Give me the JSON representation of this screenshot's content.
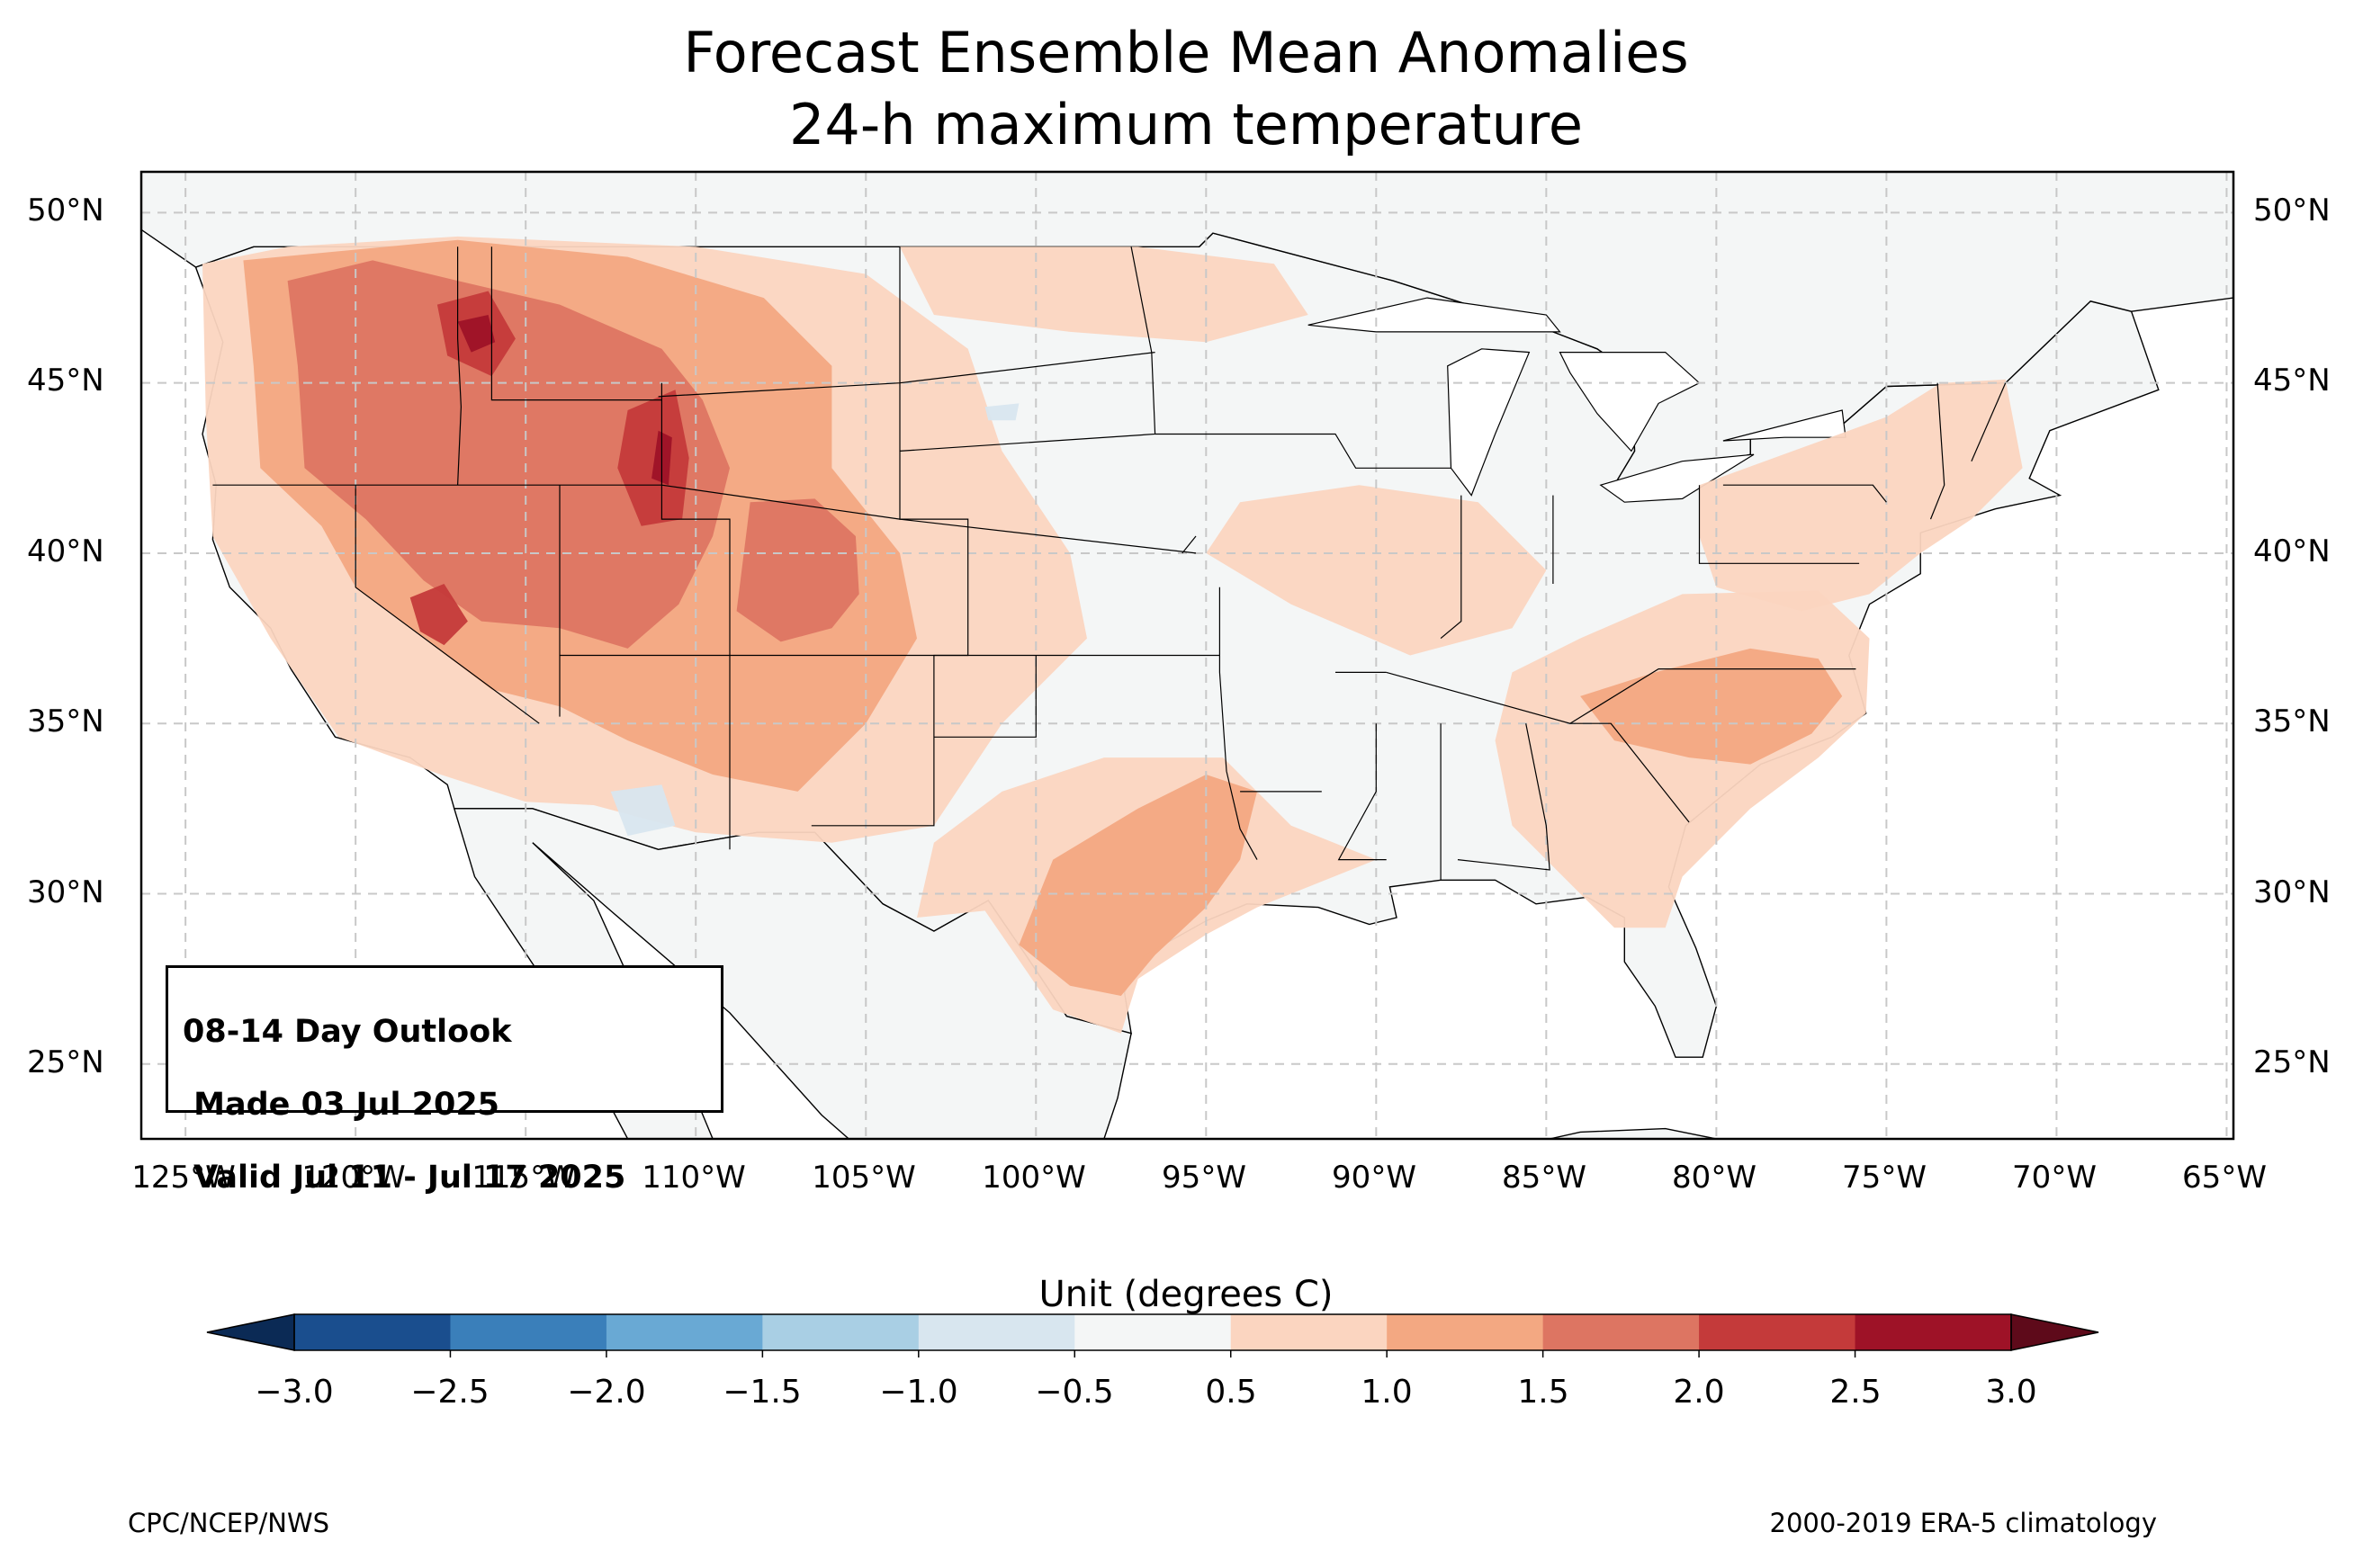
{
  "title": {
    "line1": "Forecast Ensemble Mean Anomalies",
    "line2": "24-h maximum temperature"
  },
  "info_box": {
    "line1": "08-14 Day Outlook",
    "line2": " Made 03 Jul 2025",
    "line3": " Valid Jul 11 - Jul 17 2025"
  },
  "latitude_labels": [
    "50°N",
    "45°N",
    "40°N",
    "35°N",
    "30°N",
    "25°N"
  ],
  "longitude_labels": [
    "125°W",
    "120°W",
    "115°W",
    "110°W",
    "105°W",
    "100°W",
    "95°W",
    "90°W",
    "85°W",
    "80°W",
    "75°W",
    "70°W",
    "65°W"
  ],
  "colorbar": {
    "label": "Unit (degrees C)",
    "ticks": [
      "−3.0",
      "−2.5",
      "−2.0",
      "−1.5",
      "−1.0",
      "−0.5",
      "0.5",
      "1.0",
      "1.5",
      "2.0",
      "2.5",
      "3.0"
    ],
    "colors": [
      "#1a4e8e",
      "#3a7fba",
      "#69a9d4",
      "#a9cfe4",
      "#d8e6ef",
      "#f4f6f6",
      "#fbd5c0",
      "#f3a882",
      "#dd7562",
      "#c43a3a",
      "#9e1227"
    ],
    "under_color": "#0b2a55",
    "over_color": "#5e0a1a"
  },
  "footer": {
    "left": "CPC/NCEP/NWS",
    "right": "2000-2019 ERA-5 climatology"
  },
  "map": {
    "extent": {
      "lon_min": -126.3,
      "lon_max": -64.8,
      "lat_min": 22.8,
      "lat_max": 51.2
    },
    "land_color": "#f4f6f6",
    "anomaly_regions": [
      {
        "level": 1,
        "name": "West broad warmth",
        "poly": [
          [
            -124.5,
            48.5
          ],
          [
            -122,
            49
          ],
          [
            -117,
            49.3
          ],
          [
            -110,
            49
          ],
          [
            -105,
            48.2
          ],
          [
            -102,
            46
          ],
          [
            -101,
            43
          ],
          [
            -99,
            40
          ],
          [
            -98.5,
            37.5
          ],
          [
            -101,
            35
          ],
          [
            -103,
            32
          ],
          [
            -106,
            31.5
          ],
          [
            -110,
            31.8
          ],
          [
            -113,
            32.6
          ],
          [
            -115,
            32.7
          ],
          [
            -117.5,
            33.5
          ],
          [
            -120.5,
            34.6
          ],
          [
            -122.5,
            37.5
          ],
          [
            -124.2,
            40.5
          ],
          [
            -124.4,
            44
          ]
        ]
      },
      {
        "level": 1,
        "name": "Northern Plains",
        "poly": [
          [
            -104,
            49
          ],
          [
            -97,
            49
          ],
          [
            -93,
            48.5
          ],
          [
            -92,
            47
          ],
          [
            -95,
            46.2
          ],
          [
            -99,
            46.5
          ],
          [
            -103,
            47
          ]
        ]
      },
      {
        "level": 1,
        "name": "Upper Midwest",
        "poly": [
          [
            -94,
            41.5
          ],
          [
            -90.5,
            42
          ],
          [
            -87,
            41.5
          ],
          [
            -85,
            39.5
          ],
          [
            -86,
            37.8
          ],
          [
            -89,
            37
          ],
          [
            -92.5,
            38.5
          ],
          [
            -95,
            40
          ]
        ]
      },
      {
        "level": 1,
        "name": "Texas",
        "poly": [
          [
            -103,
            31.5
          ],
          [
            -101,
            33
          ],
          [
            -98,
            34
          ],
          [
            -94.5,
            34
          ],
          [
            -92.5,
            32
          ],
          [
            -90,
            31
          ],
          [
            -93.5,
            29.6
          ],
          [
            -95,
            28.8
          ],
          [
            -97,
            27.5
          ],
          [
            -97.5,
            25.9
          ],
          [
            -99.5,
            26.6
          ],
          [
            -101.5,
            29.5
          ],
          [
            -103.5,
            29.3
          ]
        ]
      },
      {
        "level": 1,
        "name": "Southeast",
        "poly": [
          [
            -86,
            36.5
          ],
          [
            -84,
            37.5
          ],
          [
            -81,
            38.8
          ],
          [
            -77,
            38.9
          ],
          [
            -75.5,
            37.5
          ],
          [
            -75.6,
            35.3
          ],
          [
            -77,
            34
          ],
          [
            -79,
            32.5
          ],
          [
            -81,
            30.5
          ],
          [
            -81.5,
            29
          ],
          [
            -83,
            29
          ],
          [
            -84.5,
            30.5
          ],
          [
            -86,
            32
          ],
          [
            -86.5,
            34.5
          ]
        ]
      },
      {
        "level": 1,
        "name": "Mid-Atlantic/Northeast",
        "poly": [
          [
            -80.5,
            42
          ],
          [
            -75,
            44
          ],
          [
            -73.4,
            45
          ],
          [
            -71.5,
            45.1
          ],
          [
            -71,
            42.5
          ],
          [
            -72.5,
            41
          ],
          [
            -74,
            40
          ],
          [
            -75.5,
            38.8
          ],
          [
            -77.5,
            38.3
          ],
          [
            -80,
            39
          ],
          [
            -80.5,
            40.5
          ]
        ]
      },
      {
        "level": 2,
        "name": "Northwest/Rockies",
        "poly": [
          [
            -123.3,
            48.6
          ],
          [
            -117,
            49.2
          ],
          [
            -112,
            48.7
          ],
          [
            -108,
            47.5
          ],
          [
            -106,
            45.5
          ],
          [
            -106,
            42.5
          ],
          [
            -104,
            40
          ],
          [
            -103.5,
            37.5
          ],
          [
            -105,
            35
          ],
          [
            -107,
            33
          ],
          [
            -109.5,
            33.5
          ],
          [
            -112,
            34.5
          ],
          [
            -114,
            35.5
          ],
          [
            -116,
            36
          ],
          [
            -118,
            37.5
          ],
          [
            -120,
            39
          ],
          [
            -121,
            40.8
          ],
          [
            -122.8,
            42.5
          ],
          [
            -123,
            45.5
          ]
        ]
      },
      {
        "level": 2,
        "name": "Texas core",
        "poly": [
          [
            -99.5,
            31
          ],
          [
            -97,
            32.5
          ],
          [
            -95,
            33.5
          ],
          [
            -93.5,
            33
          ],
          [
            -94,
            31
          ],
          [
            -95,
            29.6
          ],
          [
            -96.5,
            28.2
          ],
          [
            -97.5,
            27
          ],
          [
            -99,
            27.3
          ],
          [
            -100.5,
            28.5
          ]
        ]
      },
      {
        "level": 2,
        "name": "Carolinas",
        "poly": [
          [
            -84,
            35.8
          ],
          [
            -81.8,
            36.5
          ],
          [
            -79,
            37.2
          ],
          [
            -77,
            36.9
          ],
          [
            -76.3,
            35.8
          ],
          [
            -77.2,
            34.7
          ],
          [
            -79,
            33.8
          ],
          [
            -80.8,
            34
          ],
          [
            -83,
            34.5
          ]
        ]
      },
      {
        "level": 3,
        "name": "Idaho/Utah/Wyoming core",
        "poly": [
          [
            -122,
            48
          ],
          [
            -119.5,
            48.6
          ],
          [
            -117,
            48
          ],
          [
            -114,
            47.3
          ],
          [
            -111,
            46
          ],
          [
            -109.8,
            44.5
          ],
          [
            -109,
            42.5
          ],
          [
            -109.5,
            40.5
          ],
          [
            -110.5,
            38.5
          ],
          [
            -112,
            37.2
          ],
          [
            -114,
            37.8
          ],
          [
            -116.3,
            38
          ],
          [
            -118,
            39.2
          ],
          [
            -119.7,
            41
          ],
          [
            -121.5,
            42.5
          ],
          [
            -121.7,
            45.5
          ]
        ]
      },
      {
        "level": 3,
        "name": "Colorado core",
        "poly": [
          [
            -108.4,
            41.5
          ],
          [
            -106.5,
            41.6
          ],
          [
            -105.3,
            40.5
          ],
          [
            -105.2,
            38.8
          ],
          [
            -106,
            37.8
          ],
          [
            -107.5,
            37.4
          ],
          [
            -108.8,
            38.3
          ]
        ]
      },
      {
        "level": 4,
        "name": "Central Idaho",
        "poly": [
          [
            -117.6,
            47.3
          ],
          [
            -116.1,
            47.7
          ],
          [
            -115.3,
            46.3
          ],
          [
            -116,
            45.2
          ],
          [
            -117.3,
            45.8
          ]
        ]
      },
      {
        "level": 4,
        "name": "Wyoming/Utah",
        "poly": [
          [
            -112,
            44.2
          ],
          [
            -110.6,
            44.8
          ],
          [
            -110.2,
            42.8
          ],
          [
            -110.4,
            41
          ],
          [
            -111.6,
            40.8
          ],
          [
            -112.3,
            42.5
          ]
        ]
      },
      {
        "level": 4,
        "name": "Nevada",
        "poly": [
          [
            -118.4,
            38.7
          ],
          [
            -117.4,
            39.1
          ],
          [
            -116.7,
            38
          ],
          [
            -117.4,
            37.3
          ],
          [
            -118.1,
            37.7
          ]
        ]
      },
      {
        "level": 5,
        "name": "Idaho peak",
        "poly": [
          [
            -117,
            46.8
          ],
          [
            -116.1,
            47
          ],
          [
            -115.9,
            46.2
          ],
          [
            -116.6,
            45.9
          ]
        ]
      },
      {
        "level": 5,
        "name": "Wyoming peak",
        "poly": [
          [
            -111.1,
            43.6
          ],
          [
            -110.7,
            43.4
          ],
          [
            -110.8,
            42
          ],
          [
            -111.3,
            42.2
          ]
        ]
      },
      {
        "level": -1,
        "name": "Arizona cool spot",
        "poly": [
          [
            -112.5,
            33
          ],
          [
            -111,
            33.2
          ],
          [
            -110.6,
            32
          ],
          [
            -112,
            31.7
          ]
        ]
      },
      {
        "level": -1,
        "name": "Nebraska cool spot",
        "poly": [
          [
            -101.5,
            44.3
          ],
          [
            -100.5,
            44.4
          ],
          [
            -100.6,
            43.9
          ],
          [
            -101.4,
            43.9
          ]
        ]
      }
    ]
  }
}
